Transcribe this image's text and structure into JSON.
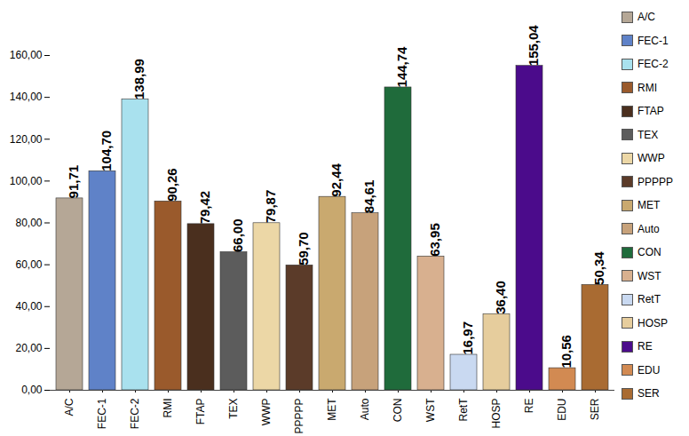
{
  "chart_data": {
    "type": "bar",
    "categories": [
      "A/C",
      "FEC-1",
      "FEC-2",
      "RMI",
      "FTAP",
      "TEX",
      "WWP",
      "PPPPP",
      "MET",
      "Auto",
      "CON",
      "WST",
      "RetT",
      "HOSP",
      "RE",
      "EDU",
      "SER"
    ],
    "values": [
      91.71,
      104.7,
      138.99,
      90.26,
      79.42,
      66.0,
      79.87,
      59.7,
      92.44,
      84.61,
      144.74,
      63.95,
      16.97,
      36.4,
      155.04,
      10.56,
      50.34
    ],
    "value_labels": [
      "91,71",
      "104,70",
      "138,99",
      "90,26",
      "79,42",
      "66,00",
      "79,87",
      "59,70",
      "92,44",
      "84,61",
      "144,74",
      "63,95",
      "16,97",
      "36,40",
      "155,04",
      "10,56",
      "50,34"
    ],
    "colors": [
      "#b5a796",
      "#5f82c8",
      "#a9e1ee",
      "#9a5a2c",
      "#4a2f1e",
      "#5c5c5c",
      "#ecd7a6",
      "#5b3b29",
      "#c9a96f",
      "#c7a27b",
      "#1f6b3b",
      "#d8b08f",
      "#c9d9f1",
      "#e6cd9d",
      "#4b0b8b",
      "#d28a52",
      "#a96b32"
    ],
    "ylim": [
      0,
      160
    ],
    "yticks": [
      {
        "value": 0,
        "label": "0,00"
      },
      {
        "value": 20,
        "label": "20,00"
      },
      {
        "value": 40,
        "label": "40,00"
      },
      {
        "value": 60,
        "label": "60,00"
      },
      {
        "value": 80,
        "label": "80,00"
      },
      {
        "value": 100,
        "label": "100,00"
      },
      {
        "value": 120,
        "label": "120,00"
      },
      {
        "value": 140,
        "label": "140,00"
      },
      {
        "value": 160,
        "label": "160,00"
      }
    ],
    "grid": false,
    "data_labels": true,
    "legend": "right"
  }
}
